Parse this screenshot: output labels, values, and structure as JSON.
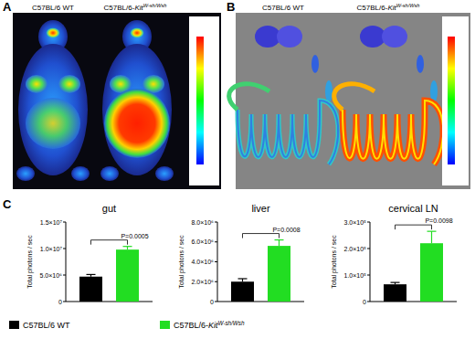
{
  "figure": {
    "panel_labels": [
      "A",
      "B",
      "C"
    ],
    "image_captions": [
      [
        "C57BL/6 WT",
        "C57BL/6-KitW-sh/Wsh"
      ],
      [
        "C57BL/6 WT",
        "C57BL/6-KitW-sh/Wsh"
      ]
    ],
    "legend_entries": [
      {
        "label": "C57BL/6 WT",
        "color": "#000000"
      },
      {
        "label": "C57BL/6-KitW-sh/Wsh",
        "color": "#22dd22"
      }
    ]
  },
  "chart_data": [
    {
      "type": "bar",
      "title": "gut",
      "y_label": "Total photons / sec",
      "categories": [
        null,
        null
      ],
      "values": [
        4700000,
        9800000
      ],
      "errors": [
        400000,
        600000
      ],
      "colors": [
        "#000000",
        "#22dd22"
      ],
      "annotation": "P=0.0005",
      "ylim": [
        0,
        15000000
      ],
      "yticks": [
        {
          "value": 0,
          "label": "0"
        },
        {
          "value": 5000000,
          "label": "5.0×10⁶"
        },
        {
          "value": 10000000,
          "label": "1.0×10⁷"
        },
        {
          "value": 15000000,
          "label": "1.5×10⁷"
        }
      ]
    },
    {
      "type": "bar",
      "title": "liver",
      "y_label": "Total photons / sec",
      "categories": [
        null,
        null
      ],
      "values": [
        2000000,
        5600000
      ],
      "errors": [
        300000,
        600000
      ],
      "colors": [
        "#000000",
        "#22dd22"
      ],
      "annotation": "P=0.0008",
      "ylim": [
        0,
        8000000
      ],
      "yticks": [
        {
          "value": 0,
          "label": "0"
        },
        {
          "value": 2000000,
          "label": "2.0×10⁶"
        },
        {
          "value": 4000000,
          "label": "4.0×10⁶"
        },
        {
          "value": 6000000,
          "label": "6.0×10⁶"
        },
        {
          "value": 8000000,
          "label": "8.0×10⁶"
        }
      ]
    },
    {
      "type": "bar",
      "title": "cervical LN",
      "y_label": "Total photons / sec",
      "categories": [
        null,
        null
      ],
      "values": [
        65000,
        220000
      ],
      "errors": [
        7000,
        45000
      ],
      "colors": [
        "#000000",
        "#22dd22"
      ],
      "annotation": "P=0.0098",
      "ylim": [
        0,
        300000
      ],
      "yticks": [
        {
          "value": 0,
          "label": "0"
        },
        {
          "value": 100000,
          "label": "1.0×10⁵"
        },
        {
          "value": 200000,
          "label": "2.0×10⁵"
        },
        {
          "value": 300000,
          "label": "3.0×10⁵"
        }
      ]
    }
  ]
}
